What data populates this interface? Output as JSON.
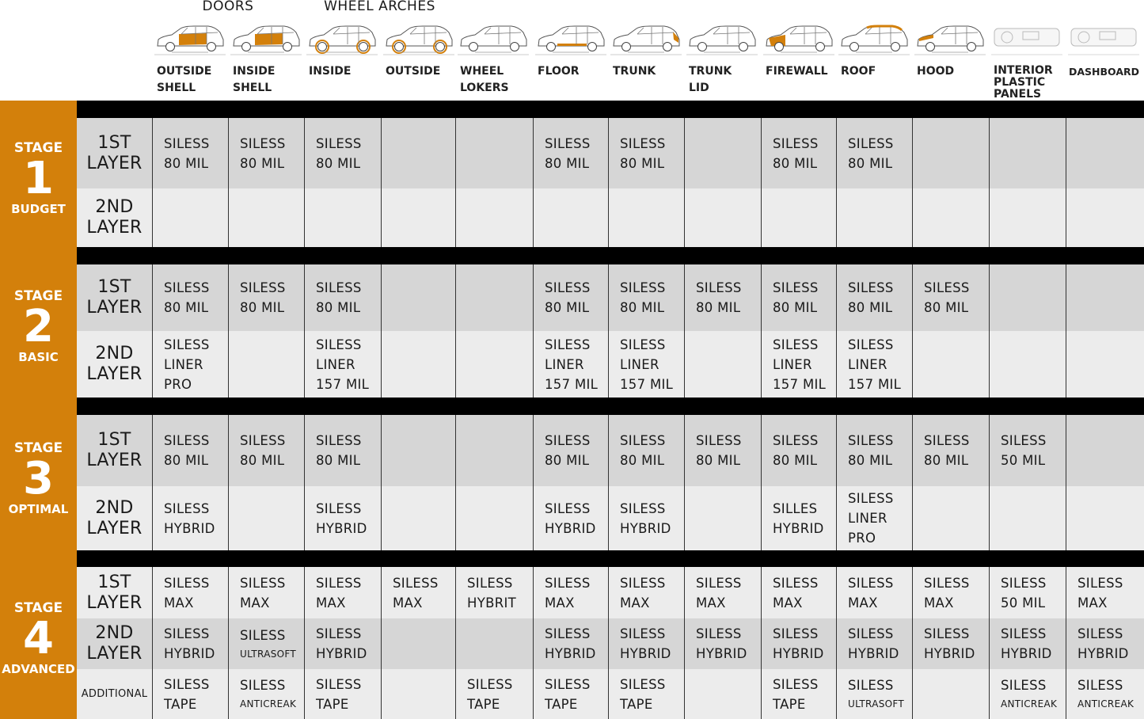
{
  "colors": {
    "accent": "#d3800b",
    "row_dark": "#d6d6d6",
    "row_light": "#ececec",
    "bar": "#000000"
  },
  "groups": [
    {
      "label": "DOORS",
      "span": [
        0,
        1
      ]
    },
    {
      "label": "WHEEL ARCHES",
      "span": [
        2,
        3
      ]
    }
  ],
  "columns": [
    {
      "label": "OUTSIDE\nSHELL",
      "icon": "car-doors-icon",
      "highlight": "doors"
    },
    {
      "label": "INSIDE\nSHELL",
      "icon": "car-doors-icon",
      "highlight": "doors"
    },
    {
      "label": "INSIDE",
      "icon": "car-arches-icon",
      "highlight": "arches"
    },
    {
      "label": "OUTSIDE",
      "icon": "car-arches-icon",
      "highlight": "arches"
    },
    {
      "label": "WHEEL\nLOKERS",
      "icon": "car-icon",
      "highlight": "none"
    },
    {
      "label": "FLOOR",
      "icon": "car-floor-icon",
      "highlight": "floor"
    },
    {
      "label": "TRUNK",
      "icon": "car-trunk-icon",
      "highlight": "trunk"
    },
    {
      "label": "TRUNK\nLID",
      "icon": "car-icon",
      "highlight": "none"
    },
    {
      "label": "FIREWALL",
      "icon": "car-firewall-icon",
      "highlight": "firewall"
    },
    {
      "label": "ROOF",
      "icon": "car-roof-icon",
      "highlight": "roof"
    },
    {
      "label": "HOOD",
      "icon": "car-hood-icon",
      "highlight": "hood"
    },
    {
      "label": "INTERIOR\nPLASTIC\nPANELS",
      "icon": "interior-icon",
      "highlight": "interior"
    },
    {
      "label": "DASHBOARD",
      "icon": "dashboard-icon",
      "highlight": "interior"
    }
  ],
  "stages": [
    {
      "word": "STAGE",
      "number": "1",
      "name": "BUDGET",
      "rows": [
        {
          "layer": "1ST\nLAYER",
          "shade": "dark",
          "cells": [
            "SILESS\n80 MIL",
            "SILESS\n80 MIL",
            "SILESS\n80 MIL",
            "",
            "",
            "SILESS\n80 MIL",
            "SILESS\n80 MIL",
            "",
            "SILESS\n80 MIL",
            "SILESS\n80 MIL",
            "",
            "",
            ""
          ]
        },
        {
          "layer": "2ND\nLAYER",
          "shade": "light",
          "cells": [
            "",
            "",
            "",
            "",
            "",
            "",
            "",
            "",
            "",
            "",
            "",
            "",
            ""
          ]
        }
      ]
    },
    {
      "word": "STAGE",
      "number": "2",
      "name": "BASIC",
      "rows": [
        {
          "layer": "1ST\nLAYER",
          "shade": "dark",
          "cells": [
            "SILESS\n80 MIL",
            "SILESS\n80 MIL",
            "SILESS\n80 MIL",
            "",
            "",
            "SILESS\n80 MIL",
            "SILESS\n80 MIL",
            "SILESS\n80 MIL",
            "SILESS\n80 MIL",
            "SILESS\n80 MIL",
            "SILESS\n80 MIL",
            "",
            ""
          ]
        },
        {
          "layer": "2ND\nLAYER",
          "shade": "light",
          "cells": [
            "SILESS\nLINER\nPRO",
            "",
            "SILESS\nLINER\n157 MIL",
            "",
            "",
            "SILESS\nLINER\n157 MIL",
            "SILESS\nLINER\n157 MIL",
            "",
            "SILESS\nLINER\n157 MIL",
            "SILESS\nLINER\n157 MIL",
            "",
            "",
            ""
          ]
        }
      ]
    },
    {
      "word": "STAGE",
      "number": "3",
      "name": "OPTIMAL",
      "rows": [
        {
          "layer": "1ST\nLAYER",
          "shade": "dark",
          "cells": [
            "SILESS\n80 MIL",
            "SILESS\n80 MIL",
            "SILESS\n80 MIL",
            "",
            "",
            "SILESS\n80 MIL",
            "SILESS\n80 MIL",
            "SILESS\n80 MIL",
            "SILESS\n80 MIL",
            "SILESS\n80 MIL",
            "SILESS\n80 MIL",
            "SILESS\n50 MIL",
            ""
          ]
        },
        {
          "layer": "2ND\nLAYER",
          "shade": "light",
          "cells": [
            "SILESS\nHYBRID",
            "",
            "SILESS\nHYBRID",
            "",
            "",
            "SILESS\nHYBRID",
            "SILESS\nHYBRID",
            "",
            "SILLES\nHYBRID",
            "SILESS\nLINER\nPRO",
            "",
            "",
            ""
          ]
        }
      ]
    },
    {
      "word": "STAGE",
      "number": "4",
      "name": "ADVANCED",
      "rows": [
        {
          "layer": "1ST\nLAYER",
          "shade": "light",
          "cells": [
            "SILESS\nMAX",
            "SILESS\nMAX",
            "SILESS\nMAX",
            "SILESS\nMAX",
            "SILESS\nHYBRIT",
            "SILESS\nMAX",
            "SILESS\nMAX",
            "SILESS\nMAX",
            "SILESS\nMAX",
            "SILESS\nMAX",
            "SILESS\nMAX",
            "SILESS\n50 MIL",
            "SILESS\nMAX"
          ]
        },
        {
          "layer": "2ND\nLAYER",
          "shade": "dark",
          "cells": [
            "SILESS\nHYBRID",
            "SILESS\nULTRASOFT",
            "SILESS\nHYBRID",
            "",
            "",
            "SILESS\nHYBRID",
            "SILESS\nHYBRID",
            "SILESS\nHYBRID",
            "SILESS\nHYBRID",
            "SILESS\nHYBRID",
            "SILESS\nHYBRID",
            "SILESS\nHYBRID",
            "SILESS\nHYBRID"
          ]
        },
        {
          "layer": "ADDITIONAL",
          "shade": "light",
          "cells": [
            "SILESS\nTAPE",
            "SILESS\nANTICREAK",
            "SILESS\nTAPE",
            "",
            "SILESS\nTAPE",
            "SILESS\nTAPE",
            "SILESS\nTAPE",
            "",
            "SILESS\nTAPE",
            "SILESS\nULTRASOFT",
            "",
            "SILESS\nANTICREAK",
            "SILESS\nANTICREAK"
          ]
        }
      ]
    }
  ]
}
